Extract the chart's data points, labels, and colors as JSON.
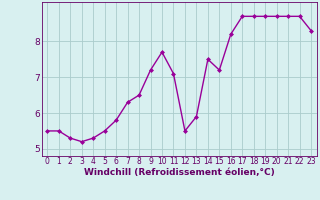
{
  "x": [
    0,
    1,
    2,
    3,
    4,
    5,
    6,
    7,
    8,
    9,
    10,
    11,
    12,
    13,
    14,
    15,
    16,
    17,
    18,
    19,
    20,
    21,
    22,
    23
  ],
  "y": [
    5.5,
    5.5,
    5.3,
    5.2,
    5.3,
    5.5,
    5.8,
    6.3,
    6.5,
    7.2,
    7.7,
    7.1,
    5.5,
    5.9,
    7.5,
    7.2,
    8.2,
    8.7,
    8.7,
    8.7,
    8.7,
    8.7,
    8.7,
    8.3
  ],
  "line_color": "#990099",
  "marker": "D",
  "markersize": 2.0,
  "linewidth": 1.0,
  "xlabel": "Windchill (Refroidissement éolien,°C)",
  "xlabel_fontsize": 6.5,
  "xlabel_color": "#660066",
  "ylabel_ticks": [
    5,
    6,
    7,
    8
  ],
  "xtick_labels": [
    "0",
    "1",
    "2",
    "3",
    "4",
    "5",
    "6",
    "7",
    "8",
    "9",
    "10",
    "11",
    "12",
    "13",
    "14",
    "15",
    "16",
    "17",
    "18",
    "19",
    "20",
    "21",
    "22",
    "23"
  ],
  "xlim": [
    -0.5,
    23.5
  ],
  "ylim": [
    4.8,
    9.1
  ],
  "bg_color": "#d8f0f0",
  "grid_color": "#aacccc",
  "tick_color": "#660066",
  "ytick_labelsize": 6.5,
  "xtick_labelsize": 5.5
}
